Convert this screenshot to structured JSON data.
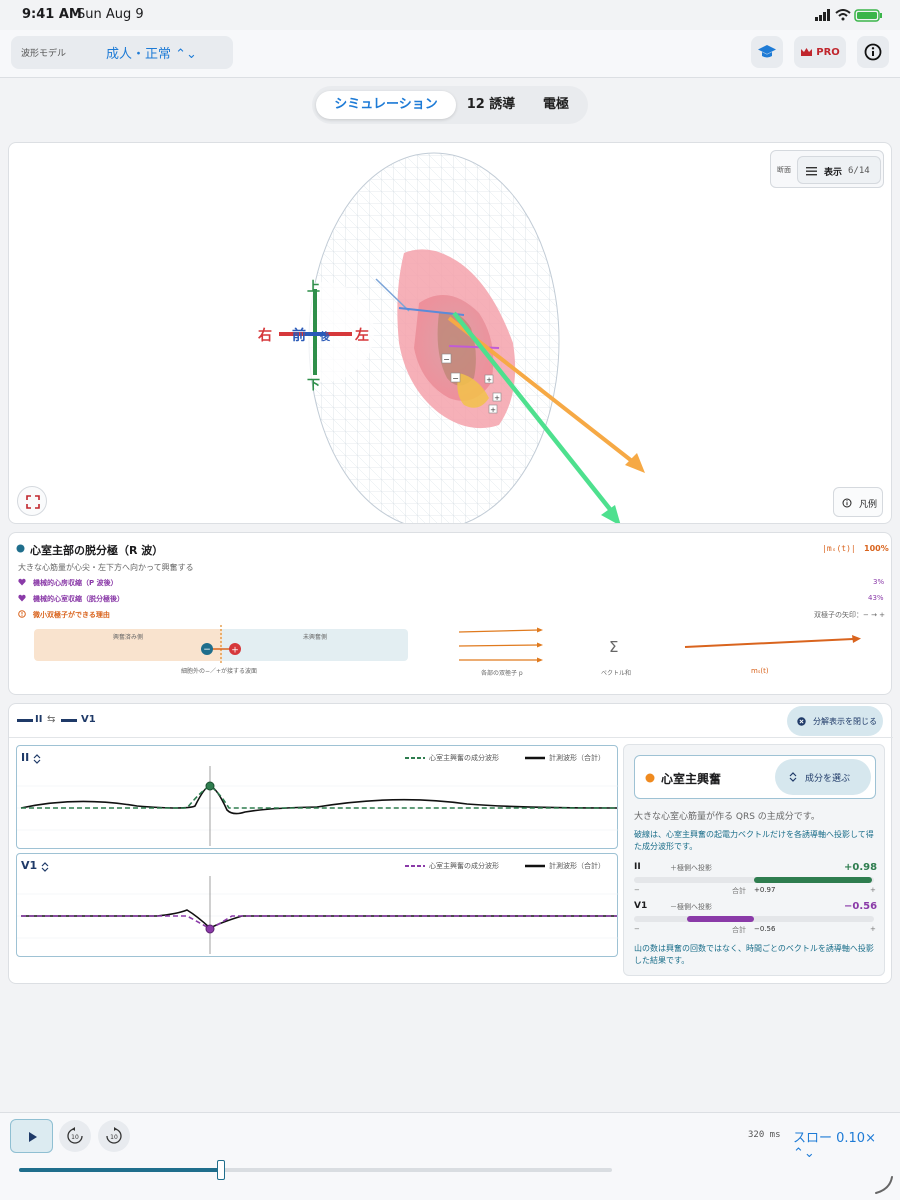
{
  "status": {
    "time": "9:41 AM",
    "date": "Sun Aug 9"
  },
  "model": {
    "label": "波形モデル",
    "value": "成人・正常 ⌃⌄"
  },
  "header": {
    "pro": "PRO"
  },
  "tabs": [
    "シミュレーション",
    "12 誘導",
    "電極"
  ],
  "viewer": {
    "section_label": "断面",
    "show_label": "表示",
    "show_count": "6/14",
    "legend_button": "凡例",
    "axes": {
      "up": "上",
      "down": "下",
      "right": "右",
      "left": "左",
      "front": "前",
      "back": "後"
    }
  },
  "info": {
    "title": "心室主部の脱分極（R 波）",
    "desc": "大きな心筋量が心尖・左下方へ向かって興奮する",
    "mag_label": "|mₛ(t)|",
    "mag_value": "100%",
    "rows": [
      {
        "label": "機械的心房収縮（P 波後）",
        "value": "3%"
      },
      {
        "label": "機械的心室収縮（脱分極後）",
        "value": "43%"
      }
    ],
    "reason": "微小双極子ができる理由",
    "dipole_arrows": "双極子の矢印：− → +",
    "excited": "興奮済み側",
    "unexcited": "未興奮側",
    "boundary": "細胞外の−／+が接する波面",
    "each_dipole": "各部の双極子 p",
    "sigma": "Σ",
    "vector_sum": "ベクトル和",
    "ms": "mₛ(t)"
  },
  "waves": {
    "lead_a": "II",
    "lead_b": "V1",
    "swap": "⇆",
    "close": "分解表示を閉じる",
    "chart_ii": {
      "lead": "II",
      "comp_legend": "心室主興奮の成分波形",
      "meas_legend": "計測波形（合計）"
    },
    "chart_v1": {
      "lead": "V1",
      "comp_legend": "心室主興奮の成分波形",
      "meas_legend": "計測波形（合計）"
    }
  },
  "side": {
    "component": "心室主興奮",
    "choose": "成分を選ぶ",
    "desc": "大きな心室心筋量が作る QRS の主成分です。",
    "note": "破線は、心室主興奮の起電力ベクトルだけを各誘導軸へ投影して得た成分波形です。",
    "leads": [
      {
        "name": "II",
        "dir": "＋極側へ投影",
        "value": "+0.98",
        "total_label": "合計",
        "total": "+0.97",
        "fill": 0.98
      },
      {
        "name": "V1",
        "dir": "－極側へ投影",
        "value": "−0.56",
        "total_label": "合計",
        "total": "−0.56",
        "fill": -0.56
      }
    ],
    "minus": "−",
    "plus": "+",
    "footer": "山の数は興奮の回数ではなく、時間ごとのベクトルを誘導軸へ投影した結果です。"
  },
  "playback": {
    "time": "320 ms",
    "speed": "スロー 0.10× ⌃⌄",
    "progress": 0.34
  },
  "colors": {
    "accent": "#1e7bd6",
    "green": "#2e7d4f",
    "purple": "#8a3aa8",
    "orange": "#d9641e"
  }
}
